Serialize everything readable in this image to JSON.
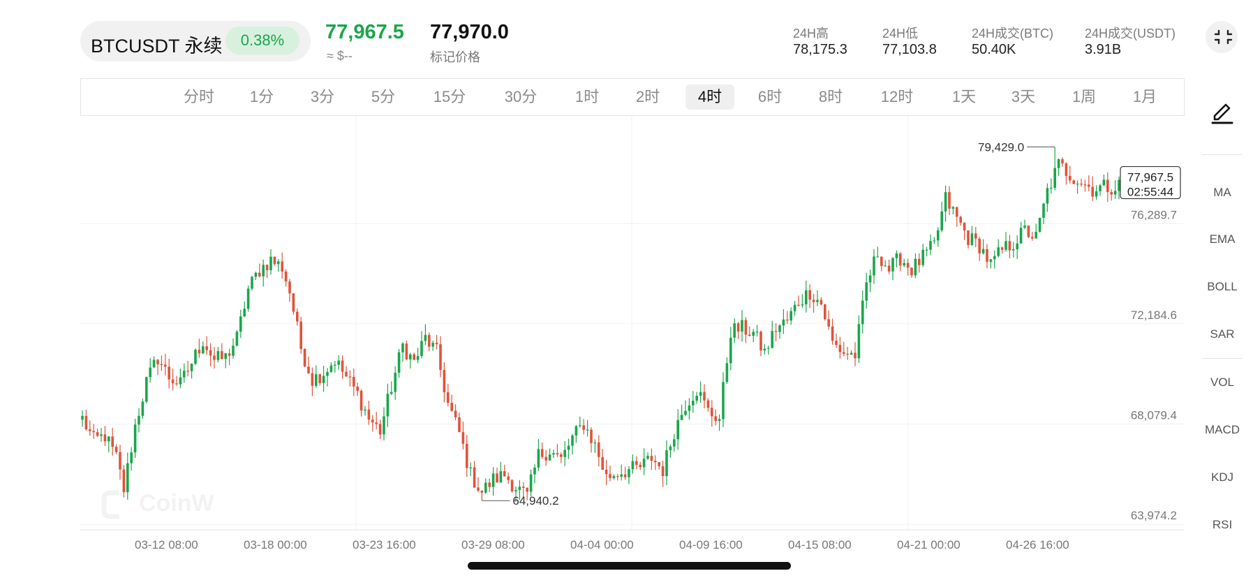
{
  "header": {
    "symbol": "BTCUSDT 永续",
    "change_pct": "0.38%",
    "last_price": "77,967.5",
    "approx_usd": "≈ $--",
    "mark_price": "77,970.0",
    "mark_label": "标记价格",
    "stats": [
      {
        "label": "24H高",
        "value": "78,175.3"
      },
      {
        "label": "24H低",
        "value": "77,103.8"
      },
      {
        "label": "24H成交(BTC)",
        "value": "50.40K"
      },
      {
        "label": "24H成交(USDT)",
        "value": "3.91B"
      }
    ]
  },
  "timeframes": {
    "items": [
      "分时",
      "1分",
      "3分",
      "5分",
      "15分",
      "30分",
      "1时",
      "2时",
      "4时",
      "6时",
      "8时",
      "12时",
      "1天",
      "3天",
      "1周",
      "1月"
    ],
    "active": "4时"
  },
  "indicators": [
    "MA",
    "EMA",
    "BOLL",
    "SAR",
    "VOL",
    "MACD",
    "KDJ",
    "RSI"
  ],
  "watermark": "CoinW",
  "colors": {
    "up": "#1aa64b",
    "down": "#e0533a",
    "accent": "#1aa64b"
  },
  "chart_data": {
    "type": "candlestick",
    "interval": "4h",
    "y_ticks": [
      76289.7,
      72184.6,
      68079.4,
      63974.2
    ],
    "y_tick_labels": [
      "76,289.7",
      "72,184.6",
      "68,079.4",
      "63,974.2"
    ],
    "ylim": [
      63974.2,
      80700
    ],
    "x_tick_labels": [
      "03-12 08:00",
      "03-18 00:00",
      "03-23 16:00",
      "03-29 08:00",
      "04-04 00:00",
      "04-09 16:00",
      "04-15 08:00",
      "04-21 00:00",
      "04-26 16:00"
    ],
    "high_marker": {
      "label": "79,429.0",
      "value": 79429.0
    },
    "low_marker": {
      "label": "64,940.2",
      "value": 64940.2
    },
    "current": {
      "price": "77,967.5",
      "countdown": "02:55:44",
      "value": 77967.5
    },
    "trend_points": [
      [
        0,
        68300
      ],
      [
        3,
        67400
      ],
      [
        6,
        67600
      ],
      [
        9,
        66700
      ],
      [
        11,
        65400
      ],
      [
        14,
        68000
      ],
      [
        17,
        69800
      ],
      [
        20,
        70800
      ],
      [
        23,
        70000
      ],
      [
        26,
        69700
      ],
      [
        29,
        70600
      ],
      [
        32,
        71500
      ],
      [
        35,
        70700
      ],
      [
        38,
        70800
      ],
      [
        41,
        71600
      ],
      [
        44,
        73600
      ],
      [
        47,
        74400
      ],
      [
        50,
        74800
      ],
      [
        53,
        74500
      ],
      [
        55,
        73500
      ],
      [
        58,
        71200
      ],
      [
        61,
        69900
      ],
      [
        64,
        70200
      ],
      [
        67,
        70700
      ],
      [
        70,
        70000
      ],
      [
        73,
        69300
      ],
      [
        76,
        68300
      ],
      [
        79,
        67800
      ],
      [
        82,
        69600
      ],
      [
        85,
        71300
      ],
      [
        88,
        70600
      ],
      [
        91,
        71600
      ],
      [
        94,
        71000
      ],
      [
        97,
        68900
      ],
      [
        100,
        67700
      ],
      [
        103,
        66000
      ],
      [
        106,
        65300
      ],
      [
        109,
        65800
      ],
      [
        112,
        66000
      ],
      [
        115,
        65500
      ],
      [
        118,
        65100
      ],
      [
        121,
        66800
      ],
      [
        124,
        67000
      ],
      [
        127,
        66600
      ],
      [
        130,
        67500
      ],
      [
        133,
        68100
      ],
      [
        136,
        67200
      ],
      [
        139,
        65900
      ],
      [
        142,
        66100
      ],
      [
        145,
        66200
      ],
      [
        148,
        66300
      ],
      [
        151,
        66700
      ],
      [
        154,
        66200
      ],
      [
        157,
        67800
      ],
      [
        160,
        68900
      ],
      [
        163,
        69500
      ],
      [
        166,
        68600
      ],
      [
        169,
        68300
      ],
      [
        172,
        71900
      ],
      [
        175,
        72000
      ],
      [
        178,
        71800
      ],
      [
        181,
        71000
      ],
      [
        184,
        72000
      ],
      [
        187,
        72300
      ],
      [
        190,
        73100
      ],
      [
        193,
        73500
      ],
      [
        196,
        73000
      ],
      [
        199,
        71400
      ],
      [
        202,
        71000
      ],
      [
        205,
        70900
      ],
      [
        208,
        73800
      ],
      [
        211,
        75100
      ],
      [
        214,
        74400
      ],
      [
        217,
        74900
      ],
      [
        220,
        74400
      ],
      [
        223,
        74900
      ],
      [
        226,
        75400
      ],
      [
        229,
        77300
      ],
      [
        232,
        76500
      ],
      [
        235,
        75700
      ],
      [
        238,
        75400
      ],
      [
        241,
        74600
      ],
      [
        244,
        75200
      ],
      [
        247,
        75500
      ],
      [
        250,
        76000
      ],
      [
        253,
        75700
      ],
      [
        256,
        77600
      ],
      [
        259,
        78700
      ],
      [
        262,
        78300
      ],
      [
        265,
        78000
      ],
      [
        268,
        77700
      ],
      [
        271,
        77800
      ],
      [
        274,
        77800
      ],
      [
        276,
        77967.5
      ]
    ]
  }
}
